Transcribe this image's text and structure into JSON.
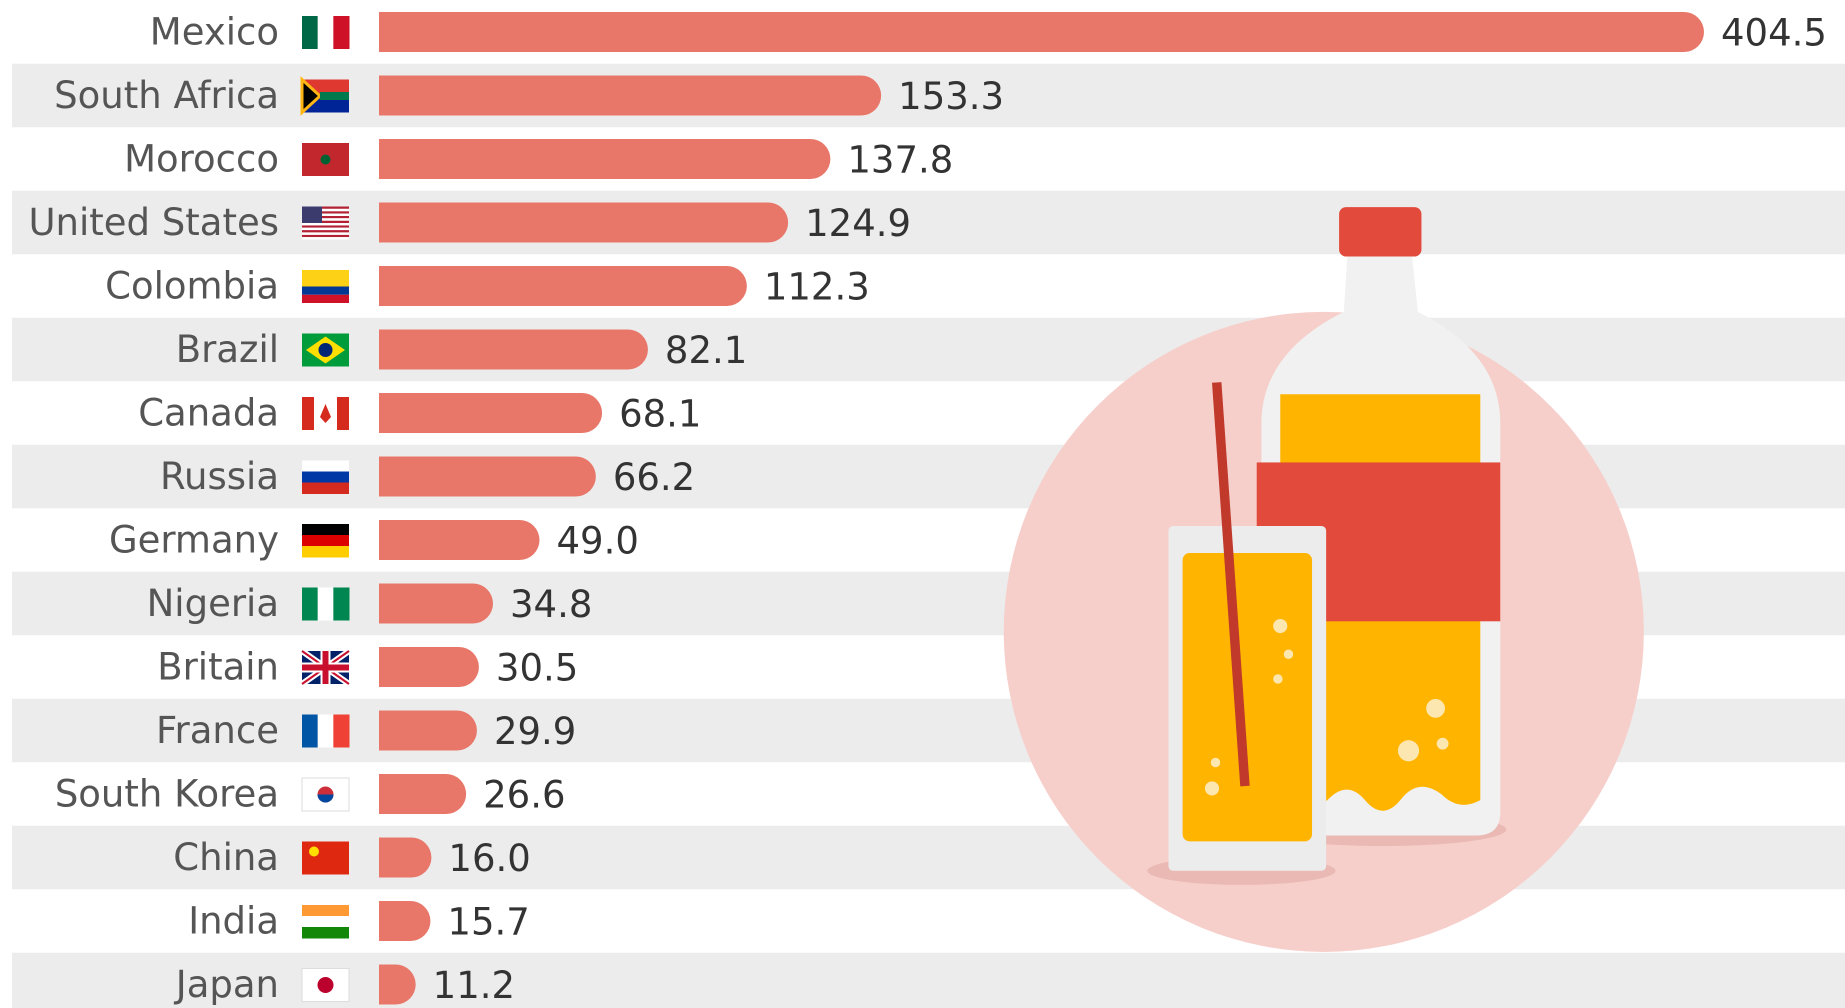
{
  "chart_data": {
    "type": "bar",
    "orientation": "horizontal",
    "color": "#e8776a",
    "categories": [
      "Mexico",
      "South Africa",
      "Morocco",
      "United States",
      "Colombia",
      "Brazil",
      "Canada",
      "Russia",
      "Germany",
      "Nigeria",
      "Britain",
      "France",
      "South Korea",
      "China",
      "India",
      "Japan"
    ],
    "values": [
      404.5,
      153.3,
      137.8,
      124.9,
      112.3,
      82.1,
      68.1,
      66.2,
      49.0,
      34.8,
      30.5,
      29.9,
      26.6,
      16.0,
      15.7,
      11.2
    ],
    "value_labels": [
      "404.5",
      "153.3",
      "137.8",
      "124.9",
      "112.3",
      "82.1",
      "68.1",
      "66.2",
      "49.0",
      "34.8",
      "30.5",
      "29.9",
      "26.6",
      "16.0",
      "15.7",
      "11.2"
    ]
  }
}
